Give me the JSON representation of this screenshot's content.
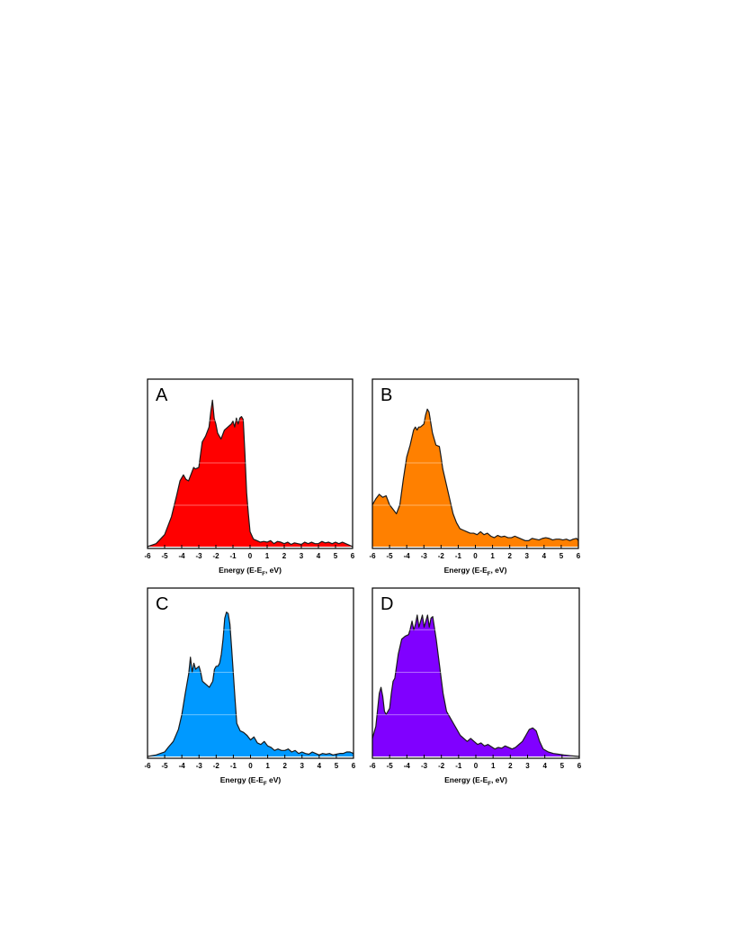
{
  "chart_data": [
    {
      "type": "area",
      "panel_label": "A",
      "color": "#ff0000",
      "xlabel": "Energy (E-E",
      "xlabel_sub": "F",
      "xlabel_tail": ", eV)",
      "xlim": [
        -6,
        6
      ],
      "ylim": [
        0,
        1
      ],
      "xticks": [
        "-6",
        "-5",
        "-4",
        "-3",
        "-2",
        "-1",
        "0",
        "1",
        "2",
        "3",
        "4",
        "5",
        "6"
      ],
      "grid": true,
      "x": [
        -6,
        -5.5,
        -5,
        -4.6,
        -4.3,
        -4.1,
        -3.9,
        -3.75,
        -3.6,
        -3.4,
        -3.3,
        -3.2,
        -3.0,
        -2.8,
        -2.6,
        -2.4,
        -2.3,
        -2.2,
        -2.1,
        -2.0,
        -1.9,
        -1.8,
        -1.7,
        -1.5,
        -1.3,
        -1.1,
        -1.0,
        -0.9,
        -0.8,
        -0.7,
        -0.6,
        -0.5,
        -0.4,
        -0.3,
        -0.2,
        -0.1,
        0,
        0.2,
        0.4,
        0.6,
        0.8,
        1.0,
        1.2,
        1.4,
        1.6,
        1.8,
        2.0,
        2.2,
        2.4,
        2.6,
        2.8,
        3.0,
        3.2,
        3.4,
        3.6,
        3.8,
        4.0,
        4.2,
        4.4,
        4.6,
        4.8,
        5.0,
        5.2,
        5.4,
        5.6,
        5.8,
        6
      ],
      "y": [
        0.0,
        0.02,
        0.08,
        0.2,
        0.34,
        0.44,
        0.48,
        0.45,
        0.44,
        0.5,
        0.53,
        0.52,
        0.53,
        0.7,
        0.74,
        0.8,
        0.9,
        0.98,
        0.86,
        0.82,
        0.76,
        0.74,
        0.72,
        0.78,
        0.8,
        0.82,
        0.84,
        0.8,
        0.86,
        0.82,
        0.86,
        0.87,
        0.85,
        0.62,
        0.36,
        0.22,
        0.1,
        0.05,
        0.04,
        0.03,
        0.035,
        0.03,
        0.04,
        0.02,
        0.035,
        0.03,
        0.02,
        0.03,
        0.015,
        0.025,
        0.02,
        0.015,
        0.03,
        0.02,
        0.03,
        0.02,
        0.02,
        0.035,
        0.025,
        0.03,
        0.02,
        0.03,
        0.02,
        0.03,
        0.02,
        0.01,
        0.0
      ]
    },
    {
      "type": "area",
      "panel_label": "B",
      "color": "#ff8000",
      "xlabel": "Energy (E-E",
      "xlabel_sub": "F",
      "xlabel_tail": ", eV)",
      "xlim": [
        -6,
        6
      ],
      "ylim": [
        0,
        1
      ],
      "xticks": [
        "-6",
        "-5",
        "-4",
        "-3",
        "-2",
        "-1",
        "0",
        "1",
        "2",
        "3",
        "4",
        "5",
        "6"
      ],
      "grid": true,
      "x": [
        -6,
        -5.8,
        -5.6,
        -5.4,
        -5.2,
        -5.0,
        -4.8,
        -4.6,
        -4.4,
        -4.2,
        -4.0,
        -3.8,
        -3.6,
        -3.5,
        -3.4,
        -3.3,
        -3.2,
        -3.0,
        -2.9,
        -2.8,
        -2.7,
        -2.6,
        -2.5,
        -2.3,
        -2.1,
        -2.0,
        -1.9,
        -1.7,
        -1.5,
        -1.3,
        -1.1,
        -0.9,
        -0.7,
        -0.5,
        -0.3,
        -0.1,
        0.1,
        0.3,
        0.5,
        0.7,
        0.9,
        1.1,
        1.3,
        1.5,
        1.7,
        1.9,
        2.1,
        2.3,
        2.5,
        2.7,
        2.9,
        3.1,
        3.3,
        3.5,
        3.7,
        3.9,
        4.1,
        4.3,
        4.5,
        4.7,
        4.9,
        5.1,
        5.3,
        5.5,
        5.7,
        5.9,
        6
      ],
      "y": [
        0.28,
        0.32,
        0.35,
        0.33,
        0.34,
        0.28,
        0.25,
        0.22,
        0.28,
        0.45,
        0.6,
        0.68,
        0.78,
        0.8,
        0.78,
        0.8,
        0.8,
        0.82,
        0.88,
        0.92,
        0.9,
        0.83,
        0.76,
        0.68,
        0.67,
        0.6,
        0.52,
        0.42,
        0.32,
        0.22,
        0.16,
        0.12,
        0.11,
        0.1,
        0.09,
        0.09,
        0.08,
        0.1,
        0.08,
        0.09,
        0.07,
        0.06,
        0.075,
        0.065,
        0.07,
        0.06,
        0.06,
        0.07,
        0.06,
        0.05,
        0.04,
        0.04,
        0.055,
        0.05,
        0.045,
        0.055,
        0.06,
        0.055,
        0.045,
        0.05,
        0.05,
        0.045,
        0.05,
        0.04,
        0.05,
        0.055,
        0.04
      ]
    },
    {
      "type": "area",
      "panel_label": "C",
      "color": "#0099ff",
      "xlabel": "Energy (E-E",
      "xlabel_sub": "F",
      "xlabel_tail": " eV)",
      "xlim": [
        -6,
        6
      ],
      "ylim": [
        0,
        1
      ],
      "xticks": [
        "-6",
        "-5",
        "-4",
        "-3",
        "-2",
        "-1",
        "0",
        "1",
        "2",
        "3",
        "4",
        "5",
        "6"
      ],
      "grid": true,
      "x": [
        -6,
        -5.5,
        -5.0,
        -4.8,
        -4.5,
        -4.2,
        -4.0,
        -3.8,
        -3.6,
        -3.5,
        -3.4,
        -3.3,
        -3.2,
        -3.0,
        -2.9,
        -2.8,
        -2.6,
        -2.4,
        -2.2,
        -2.1,
        -2.0,
        -1.9,
        -1.8,
        -1.7,
        -1.6,
        -1.5,
        -1.4,
        -1.3,
        -1.2,
        -1.1,
        -1.0,
        -0.9,
        -0.8,
        -0.6,
        -0.4,
        -0.2,
        0.0,
        0.2,
        0.4,
        0.6,
        0.8,
        1.0,
        1.2,
        1.4,
        1.6,
        1.8,
        2.0,
        2.2,
        2.4,
        2.6,
        2.8,
        3.0,
        3.2,
        3.4,
        3.6,
        3.8,
        4.0,
        4.2,
        4.4,
        4.6,
        4.8,
        5.0,
        5.2,
        5.4,
        5.6,
        5.8,
        6
      ],
      "y": [
        0.0,
        0.01,
        0.03,
        0.06,
        0.1,
        0.18,
        0.28,
        0.42,
        0.55,
        0.66,
        0.56,
        0.62,
        0.58,
        0.6,
        0.56,
        0.5,
        0.48,
        0.46,
        0.5,
        0.58,
        0.6,
        0.6,
        0.62,
        0.68,
        0.78,
        0.92,
        0.96,
        0.95,
        0.88,
        0.72,
        0.55,
        0.38,
        0.22,
        0.17,
        0.16,
        0.14,
        0.11,
        0.13,
        0.09,
        0.08,
        0.1,
        0.07,
        0.06,
        0.04,
        0.05,
        0.04,
        0.04,
        0.05,
        0.03,
        0.04,
        0.02,
        0.03,
        0.02,
        0.015,
        0.03,
        0.02,
        0.01,
        0.02,
        0.015,
        0.02,
        0.01,
        0.015,
        0.02,
        0.02,
        0.03,
        0.03,
        0.02
      ]
    },
    {
      "type": "area",
      "panel_label": "D",
      "color": "#8000ff",
      "xlabel": "Energy (E-E",
      "xlabel_sub": "F",
      "xlabel_tail": ", eV)",
      "xlim": [
        -6,
        6
      ],
      "ylim": [
        0,
        1
      ],
      "xticks": [
        "-6",
        "-5",
        "-4",
        "-3",
        "-2",
        "-1",
        "0",
        "1",
        "2",
        "3",
        "4",
        "5",
        "6"
      ],
      "grid": true,
      "x": [
        -6,
        -5.8,
        -5.6,
        -5.5,
        -5.4,
        -5.3,
        -5.2,
        -5.0,
        -4.9,
        -4.8,
        -4.7,
        -4.5,
        -4.3,
        -4.1,
        -3.9,
        -3.8,
        -3.7,
        -3.6,
        -3.5,
        -3.4,
        -3.3,
        -3.2,
        -3.1,
        -3.0,
        -2.9,
        -2.8,
        -2.7,
        -2.6,
        -2.5,
        -2.3,
        -2.1,
        -1.9,
        -1.7,
        -1.5,
        -1.3,
        -1.1,
        -0.9,
        -0.7,
        -0.5,
        -0.3,
        -0.1,
        0.1,
        0.3,
        0.5,
        0.7,
        0.9,
        1.1,
        1.3,
        1.5,
        1.7,
        1.9,
        2.1,
        2.3,
        2.5,
        2.7,
        2.9,
        3.1,
        3.3,
        3.5,
        3.7,
        3.9,
        4.2,
        4.5,
        4.8,
        5.1,
        5.5,
        6
      ],
      "y": [
        0.12,
        0.2,
        0.42,
        0.46,
        0.4,
        0.3,
        0.28,
        0.32,
        0.42,
        0.5,
        0.52,
        0.68,
        0.78,
        0.8,
        0.81,
        0.85,
        0.9,
        0.84,
        0.88,
        0.94,
        0.86,
        0.9,
        0.94,
        0.86,
        0.9,
        0.94,
        0.86,
        0.92,
        0.93,
        0.78,
        0.6,
        0.42,
        0.3,
        0.26,
        0.22,
        0.18,
        0.14,
        0.12,
        0.1,
        0.12,
        0.1,
        0.08,
        0.09,
        0.07,
        0.08,
        0.065,
        0.05,
        0.06,
        0.055,
        0.07,
        0.06,
        0.05,
        0.06,
        0.08,
        0.1,
        0.14,
        0.18,
        0.19,
        0.17,
        0.1,
        0.05,
        0.03,
        0.02,
        0.015,
        0.01,
        0.005,
        0.0
      ]
    }
  ]
}
